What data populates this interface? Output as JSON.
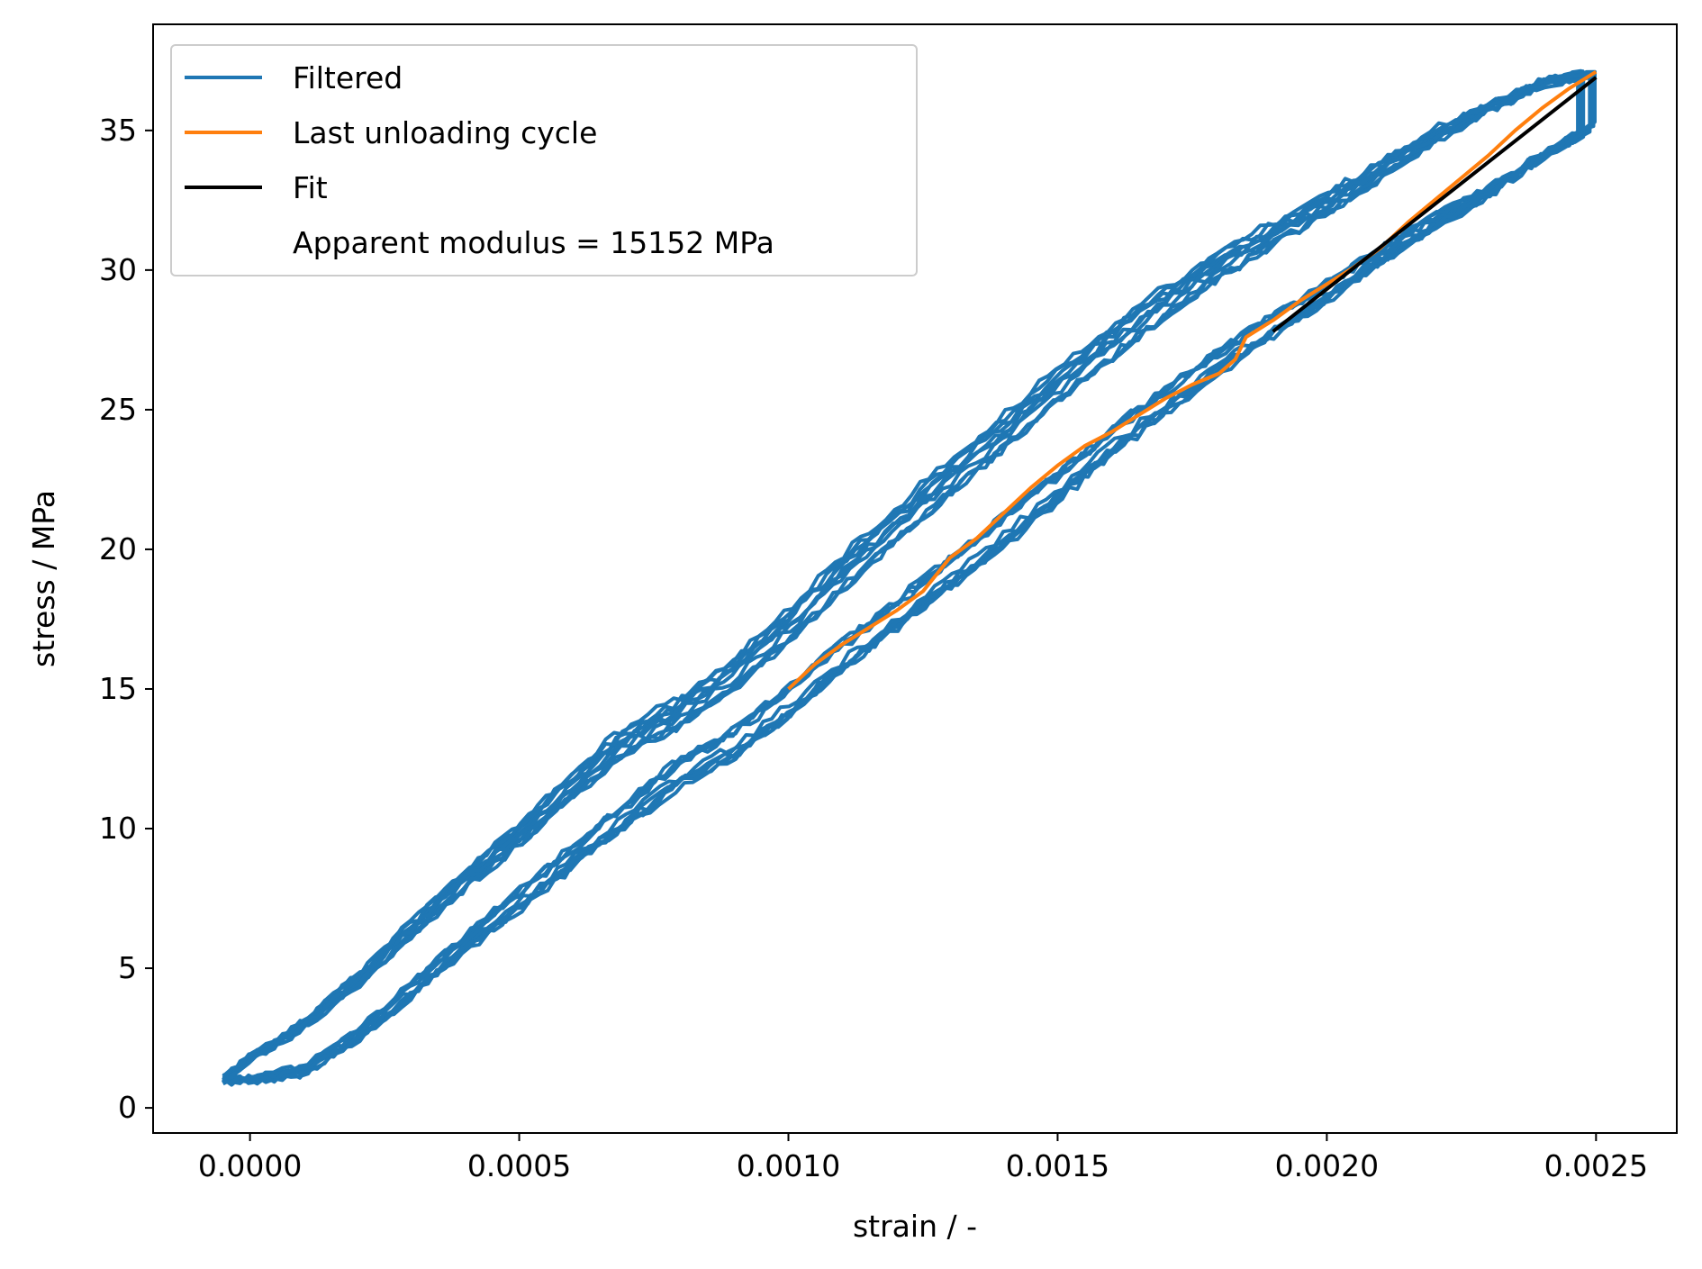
{
  "chart_data": {
    "type": "line",
    "title": "",
    "xlabel": "strain / -",
    "ylabel": "stress / MPa",
    "xlim": [
      -0.00018,
      0.00265
    ],
    "ylim": [
      -0.9,
      38.8
    ],
    "xticks": [
      0.0,
      0.0005,
      0.001,
      0.0015,
      0.002,
      0.0025
    ],
    "xtick_labels": [
      "0.0000",
      "0.0005",
      "0.0010",
      "0.0015",
      "0.0020",
      "0.0025"
    ],
    "yticks": [
      0,
      5,
      10,
      15,
      20,
      25,
      30,
      35
    ],
    "ytick_labels": [
      "0",
      "5",
      "10",
      "15",
      "20",
      "25",
      "30",
      "35"
    ],
    "grid": false,
    "legend_position": "top-left",
    "legend": [
      {
        "label": "Filtered",
        "color": "#1f77b4",
        "marker": "line"
      },
      {
        "label": "Last unloading cycle",
        "color": "#ff7f0e",
        "marker": "line"
      },
      {
        "label": "Fit",
        "color": "#000000",
        "marker": "line"
      },
      {
        "label": "Apparent modulus = 15152 MPa",
        "color": "",
        "marker": "none"
      }
    ],
    "series": [
      {
        "name": "Filtered",
        "color": "#1f77b4",
        "style": "hysteresis-loops",
        "cycles": 10,
        "x": [
          -5e-05,
          0.0,
          0.0001,
          0.0002,
          0.0003,
          0.0004,
          0.0005,
          0.0006,
          0.0007,
          0.0008,
          0.0009,
          0.001,
          0.0011,
          0.0012,
          0.0013,
          0.0014,
          0.0015,
          0.0016,
          0.0017,
          0.0018,
          0.0019,
          0.002,
          0.0021,
          0.0022,
          0.0023,
          0.0024,
          0.0025
        ],
        "y_upper": [
          1.0,
          1.8,
          3.0,
          4.6,
          6.4,
          8.2,
          9.8,
          11.6,
          13.2,
          14.2,
          15.6,
          17.3,
          19.2,
          20.9,
          22.6,
          24.2,
          25.9,
          27.4,
          28.9,
          30.2,
          31.3,
          32.4,
          33.6,
          34.8,
          35.8,
          36.7,
          37.1
        ],
        "y_lower": [
          1.0,
          1.0,
          1.3,
          2.6,
          4.2,
          5.9,
          7.4,
          9.0,
          10.5,
          12.0,
          13.0,
          14.5,
          16.1,
          17.6,
          19.1,
          20.6,
          22.2,
          23.8,
          25.3,
          26.7,
          28.0,
          29.2,
          30.5,
          31.7,
          32.8,
          34.1,
          35.2
        ]
      },
      {
        "name": "Last unloading cycle",
        "color": "#ff7f0e",
        "x": [
          0.001,
          0.00105,
          0.0011,
          0.00115,
          0.0012,
          0.00125,
          0.0013,
          0.00135,
          0.0014,
          0.00145,
          0.0015,
          0.00155,
          0.0016,
          0.00165,
          0.0017,
          0.00175,
          0.0018,
          0.00183,
          0.00185,
          0.0019,
          0.00195,
          0.002,
          0.00205,
          0.0021,
          0.00215,
          0.0022,
          0.00225,
          0.0023,
          0.00235,
          0.0024,
          0.00245,
          0.0025
        ],
        "y": [
          15.0,
          15.9,
          16.6,
          17.2,
          17.8,
          18.5,
          19.7,
          20.4,
          21.3,
          22.2,
          23.0,
          23.7,
          24.2,
          24.8,
          25.4,
          25.9,
          26.3,
          26.8,
          27.6,
          28.2,
          28.9,
          29.5,
          30.1,
          30.8,
          31.7,
          32.5,
          33.3,
          34.1,
          35.0,
          35.8,
          36.5,
          37.1
        ]
      },
      {
        "name": "Fit",
        "color": "#000000",
        "x": [
          0.0019,
          0.0025
        ],
        "y": [
          27.8,
          36.9
        ]
      }
    ]
  }
}
